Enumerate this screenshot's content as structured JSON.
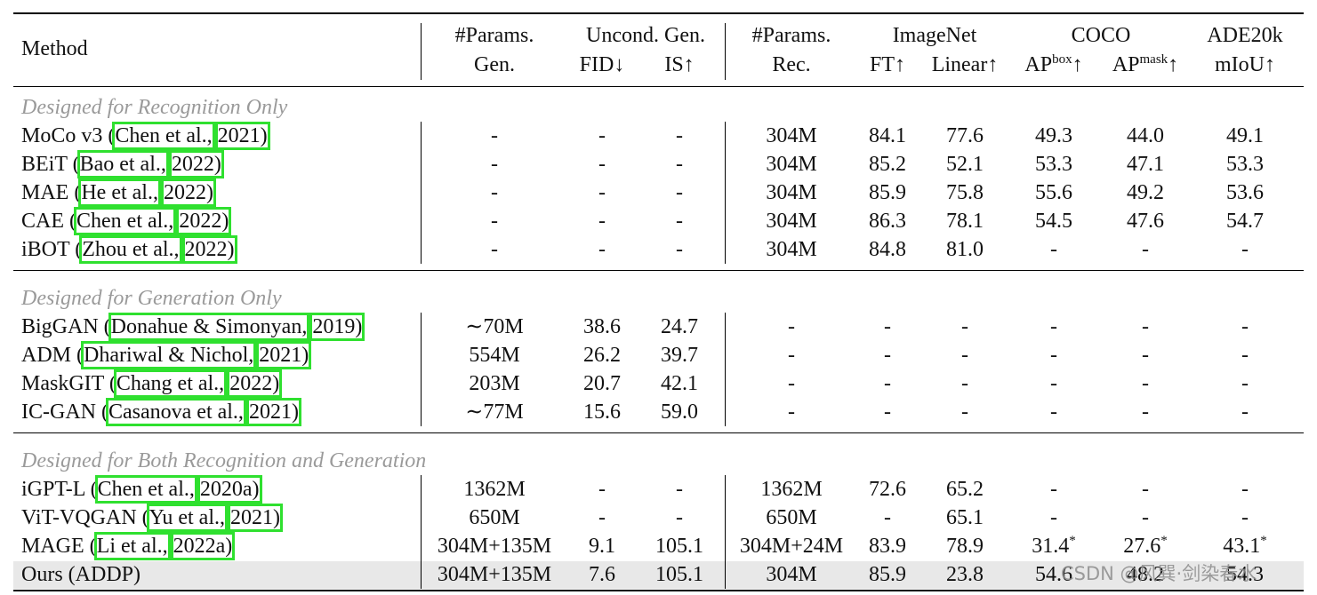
{
  "header": {
    "method": "Method",
    "params_gen": [
      "#Params.",
      "Gen."
    ],
    "uncond": "Uncond. Gen.",
    "fid": "FID↓",
    "is": "IS↑",
    "params_rec": [
      "#Params.",
      "Rec."
    ],
    "imagenet": "ImageNet",
    "ft": "FT↑",
    "linear": "Linear↑",
    "coco": "COCO",
    "ap_box": {
      "base": "AP",
      "sup": "box",
      "suffix": "↑"
    },
    "ap_mask": {
      "base": "AP",
      "sup": "mask",
      "suffix": "↑"
    },
    "ade": "ADE20k",
    "miou": "mIoU↑"
  },
  "sections": [
    {
      "title": "Designed for Recognition Only",
      "rows": [
        {
          "name": "MoCo v3 (",
          "author": "Chen et al.,",
          "year": "2021)",
          "cells": [
            "-",
            "-",
            "-",
            "304M",
            "84.1",
            "77.6",
            "49.3",
            "44.0",
            "49.1"
          ]
        },
        {
          "name": "BEiT (",
          "author": "Bao et al.,",
          "year": "2022)",
          "cells": [
            "-",
            "-",
            "-",
            "304M",
            "85.2",
            "52.1",
            "53.3",
            "47.1",
            "53.3"
          ]
        },
        {
          "name": "MAE (",
          "author": "He et al.,",
          "year": "2022)",
          "cells": [
            "-",
            "-",
            "-",
            "304M",
            "85.9",
            "75.8",
            "55.6",
            "49.2",
            "53.6"
          ]
        },
        {
          "name": "CAE (",
          "author": "Chen et al.,",
          "year": "2022)",
          "cells": [
            "-",
            "-",
            "-",
            "304M",
            "86.3",
            "78.1",
            "54.5",
            "47.6",
            "54.7"
          ]
        },
        {
          "name": "iBOT (",
          "author": "Zhou et al.,",
          "year": "2022)",
          "cells": [
            "-",
            "-",
            "-",
            "304M",
            "84.8",
            "81.0",
            "-",
            "-",
            "-"
          ]
        }
      ]
    },
    {
      "title": "Designed for Generation Only",
      "rows": [
        {
          "name": "BigGAN (",
          "author": "Donahue & Simonyan,",
          "year": "2019)",
          "cells": [
            "∼70M",
            "38.6",
            "24.7",
            "-",
            "-",
            "-",
            "-",
            "-",
            "-"
          ]
        },
        {
          "name": "ADM (",
          "author": "Dhariwal & Nichol,",
          "year": "2021)",
          "cells": [
            "554M",
            "26.2",
            "39.7",
            "-",
            "-",
            "-",
            "-",
            "-",
            "-"
          ]
        },
        {
          "name": "MaskGIT (",
          "author": "Chang et al.,",
          "year": "2022)",
          "cells": [
            "203M",
            "20.7",
            "42.1",
            "-",
            "-",
            "-",
            "-",
            "-",
            "-"
          ]
        },
        {
          "name": "IC-GAN (",
          "author": "Casanova et al.,",
          "year": "2021)",
          "cells": [
            "∼77M",
            "15.6",
            "59.0",
            "-",
            "-",
            "-",
            "-",
            "-",
            "-"
          ]
        }
      ]
    },
    {
      "title": "Designed for Both Recognition and Generation",
      "rows": [
        {
          "name": "iGPT-L (",
          "author": "Chen et al.,",
          "year": "2020a)",
          "cells": [
            "1362M",
            "-",
            "-",
            "1362M",
            "72.6",
            "65.2",
            "-",
            "-",
            "-"
          ]
        },
        {
          "name": "ViT-VQGAN (",
          "author": "Yu et al.,",
          "year": "2021)",
          "cells": [
            "650M",
            "-",
            "-",
            "650M",
            "-",
            "65.1",
            "-",
            "-",
            "-"
          ]
        },
        {
          "name": "MAGE (",
          "author": "Li et al.,",
          "year": "2022a)",
          "cells": [
            "304M+135M",
            "9.1",
            "105.1",
            "304M+24M",
            "83.9",
            "78.9",
            {
              "text": "31.4",
              "sup": "*"
            },
            {
              "text": "27.6",
              "sup": "*"
            },
            {
              "text": "43.1",
              "sup": "*"
            }
          ]
        },
        {
          "name": "Ours (ADDP)",
          "highlight": true,
          "cells": [
            "304M+135M",
            "7.6",
            "105.1",
            "304M",
            "85.9",
            "23.8",
            "54.6",
            "48.2",
            "54.3"
          ]
        }
      ]
    }
  ],
  "watermark": "CSDN @风巽·剑染春水"
}
